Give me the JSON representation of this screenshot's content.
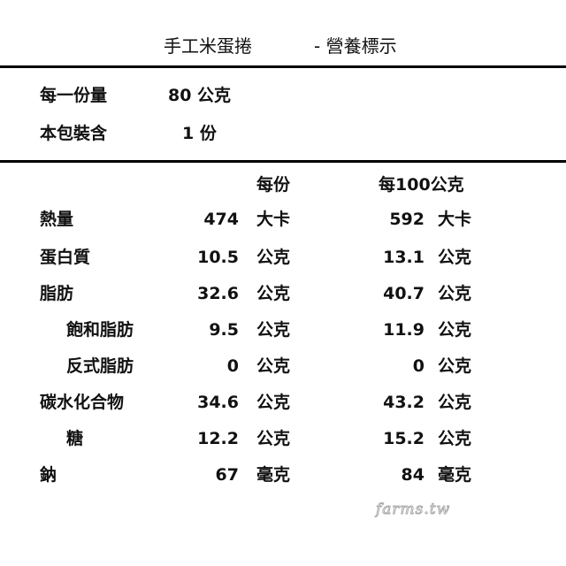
{
  "title": {
    "product": "手工米蛋捲",
    "suffix": "- 營養標示"
  },
  "serving": [
    {
      "label": "每一份量",
      "value": "80 公克"
    },
    {
      "label": "本包裝含",
      "value": "1 份"
    }
  ],
  "columns": {
    "per_serving": "每份",
    "per_100g": "每100公克"
  },
  "rows": [
    {
      "label": "熱量",
      "indent": false,
      "v1": "474",
      "u1": "大卡",
      "v2": "592",
      "u2": "大卡"
    },
    {
      "label": "蛋白質",
      "indent": false,
      "v1": "10.5",
      "u1": "公克",
      "v2": "13.1",
      "u2": "公克"
    },
    {
      "label": "脂肪",
      "indent": false,
      "v1": "32.6",
      "u1": "公克",
      "v2": "40.7",
      "u2": "公克"
    },
    {
      "label": "飽和脂肪",
      "indent": true,
      "v1": "9.5",
      "u1": "公克",
      "v2": "11.9",
      "u2": "公克"
    },
    {
      "label": "反式脂肪",
      "indent": true,
      "v1": "0",
      "u1": "公克",
      "v2": "0",
      "u2": "公克"
    },
    {
      "label": "碳水化合物",
      "indent": false,
      "v1": "34.6",
      "u1": "公克",
      "v2": "43.2",
      "u2": "公克"
    },
    {
      "label": "糖",
      "indent": true,
      "v1": "12.2",
      "u1": "公克",
      "v2": "15.2",
      "u2": "公克"
    },
    {
      "label": "鈉",
      "indent": false,
      "v1": "67",
      "u1": "毫克",
      "v2": "84",
      "u2": "毫克"
    }
  ],
  "watermark": "farms.tw"
}
